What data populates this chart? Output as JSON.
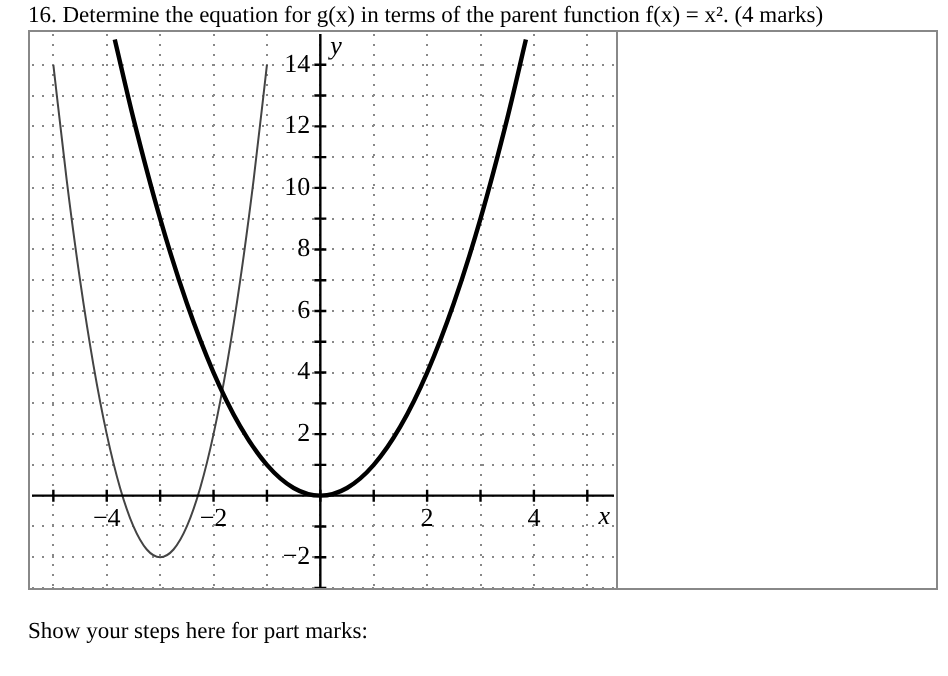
{
  "chart_data": {
    "type": "line",
    "title": "16. Determine the equation for g(x) in terms of the parent function f(x) = x². (4 marks)",
    "xlabel": "x",
    "ylabel": "y",
    "annotations": [
      "Show your steps here for part marks:"
    ],
    "xlim": [
      -5.4,
      5.5
    ],
    "ylim": [
      -3,
      15
    ],
    "xticks": [
      {
        "value": -5,
        "label": null
      },
      {
        "value": -4,
        "label": "−4"
      },
      {
        "value": -3,
        "label": null
      },
      {
        "value": -2,
        "label": "−2"
      },
      {
        "value": -1,
        "label": null
      },
      {
        "value": 0,
        "label": null
      },
      {
        "value": 1,
        "label": null
      },
      2,
      {
        "value": 3,
        "label": null
      },
      4,
      {
        "value": 5,
        "label": null
      }
    ],
    "yticks": [
      {
        "value": -3,
        "label": null
      },
      {
        "value": -2,
        "label": "−2"
      },
      {
        "value": -1,
        "label": null
      },
      {
        "value": 0,
        "label": null
      },
      {
        "value": 1,
        "label": null
      },
      2,
      {
        "value": 3,
        "label": null
      },
      4,
      {
        "value": 5,
        "label": null
      },
      6,
      {
        "value": 7,
        "label": null
      },
      8,
      {
        "value": 9,
        "label": null
      },
      10,
      {
        "value": 11,
        "label": null
      },
      12,
      {
        "value": 13,
        "label": null
      },
      14
    ],
    "grid": true,
    "legend": false,
    "marker": "none",
    "line_style": "solid",
    "series": [
      {
        "color": "#000000",
        "x": [
          -3.85,
          -3.5,
          -3,
          -2.5,
          -2,
          -1.5,
          -1,
          -0.5,
          0,
          0.5,
          1,
          1.5,
          2,
          2.5,
          3,
          3.5,
          3.85
        ],
        "values": [
          14.82,
          12.25,
          9,
          6.25,
          4,
          2.25,
          1,
          0.25,
          0,
          0.25,
          1,
          2.25,
          4,
          6.25,
          9,
          12.25,
          14.82
        ]
      },
      {
        "color": "#444444",
        "x": [
          -5,
          -4.75,
          -4.5,
          -4.25,
          -4,
          -3.75,
          -3.5,
          -3.25,
          -3,
          -2.75,
          -2.5,
          -2.25,
          -2,
          -1.75,
          -1.5,
          -1.25,
          -1
        ],
        "values": [
          14,
          10.25,
          7,
          4.25,
          2,
          0.25,
          -1,
          -1.75,
          -2,
          -1.75,
          -1,
          0.25,
          2,
          4.25,
          7,
          10.25,
          14
        ]
      }
    ]
  }
}
